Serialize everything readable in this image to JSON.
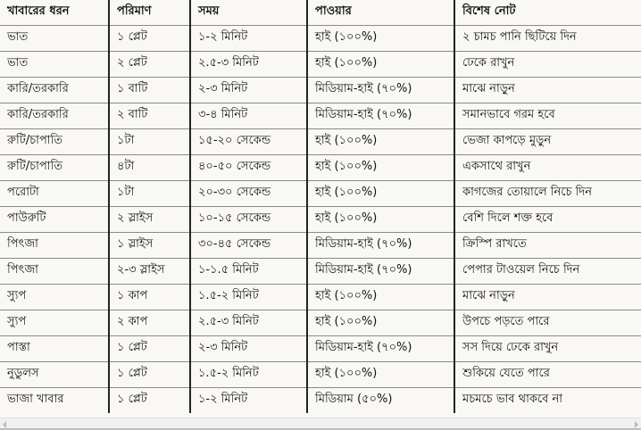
{
  "table": {
    "headers": [
      "খাবারের ধরন",
      "পরিমাণ",
      "সময়",
      "পাওয়ার",
      "বিশেষ নোট"
    ],
    "rows": [
      [
        "ভাত",
        "১ প্লেট",
        "১-২ মিনিট",
        "হাই (১০০%)",
        "২ চামচ পানি ছিটিয়ে দিন"
      ],
      [
        "ভাত",
        "২ প্লেট",
        "২.৫-৩ মিনিট",
        "হাই (১০০%)",
        "ঢেকে রাখুন"
      ],
      [
        "কারি/তরকারি",
        "১ বাটি",
        "২-৩ মিনিট",
        "মিডিয়াম-হাই (৭০%)",
        "মাঝে নাড়ুন"
      ],
      [
        "কারি/তরকারি",
        "২ বাটি",
        "৩-৪ মিনিট",
        "মিডিয়াম-হাই (৭০%)",
        "সমানভাবে গরম হবে"
      ],
      [
        "রুটি/চাপাতি",
        "১টা",
        "১৫-২০ সেকেন্ড",
        "হাই (১০০%)",
        "ভেজা কাপড়ে মুড়ুন"
      ],
      [
        "রুটি/চাপাতি",
        "৪টা",
        "৪০-৫০ সেকেন্ড",
        "হাই (১০০%)",
        "একসাথে রাখুন"
      ],
      [
        "পরোটা",
        "১টা",
        "২০-৩০ সেকেন্ড",
        "হাই (১০০%)",
        "কাগজের তোয়ালে নিচে দিন"
      ],
      [
        "পাউরুটি",
        "২ স্লাইস",
        "১০-১৫ সেকেন্ড",
        "হাই (১০০%)",
        "বেশি দিলে শক্ত হবে"
      ],
      [
        "পিৎজা",
        "১ স্লাইস",
        "৩০-৪৫ সেকেন্ড",
        "মিডিয়াম-হাই (৭০%)",
        "ক্রিস্পি রাখতে"
      ],
      [
        "পিৎজা",
        "২-৩ স্লাইস",
        "১-১.৫ মিনিট",
        "মিডিয়াম-হাই (৭০%)",
        "পেপার টাওয়েল নিচে দিন"
      ],
      [
        "স্যুপ",
        "১ কাপ",
        "১.৫-২ মিনিট",
        "হাই (১০০%)",
        "মাঝে নাড়ুন"
      ],
      [
        "স্যুপ",
        "২ কাপ",
        "২.৫-৩ মিনিট",
        "হাই (১০০%)",
        "উপচে পড়তে পারে"
      ],
      [
        "পাস্তা",
        "১ প্লেট",
        "২-৩ মিনিট",
        "মিডিয়াম-হাই (৭০%)",
        "সস দিয়ে ঢেকে রাখুন"
      ],
      [
        "নুডুলস",
        "১ প্লেট",
        "১.৫-২ মিনিট",
        "হাই (১০০%)",
        "শুকিয়ে যেতে পারে"
      ],
      [
        "ভাজা খাবার",
        "১ প্লেট",
        "১-২ মিনিট",
        "মিডিয়াম (৫০%)",
        "মচমচে ভাব থাকবে না"
      ]
    ]
  },
  "colors": {
    "background": "#f9f8f4",
    "column_border": "#222222",
    "row_border": "#8a8a8a"
  }
}
